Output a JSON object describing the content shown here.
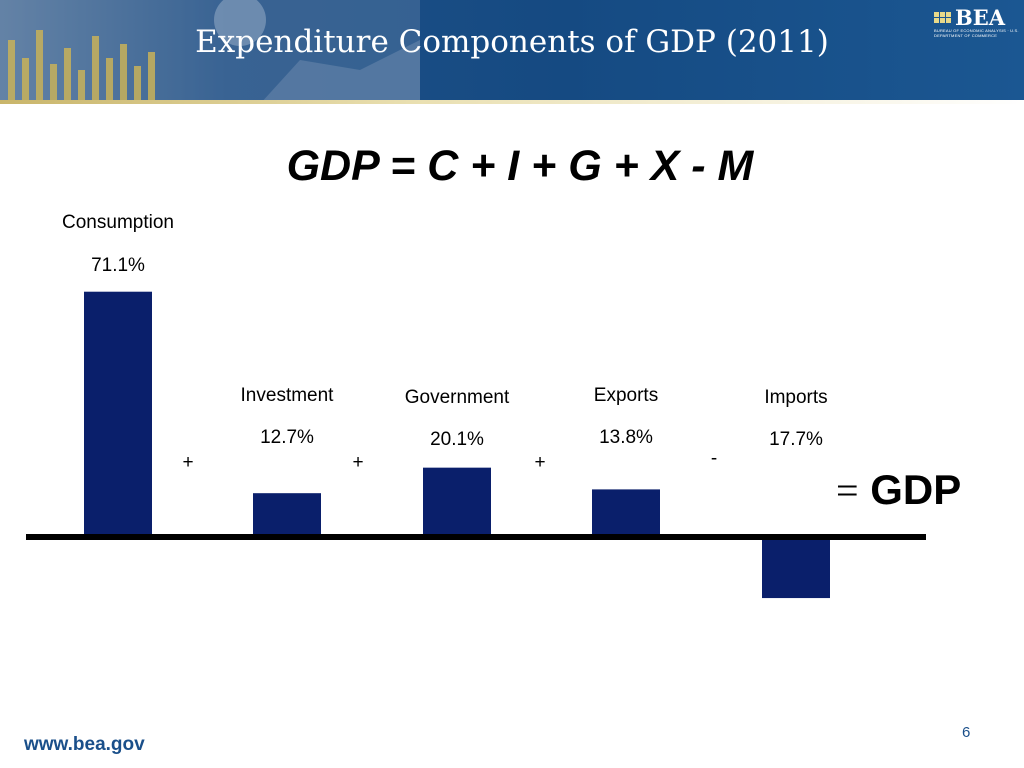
{
  "header": {
    "title": "Expenditure Components of GDP  (2011)",
    "logo_text": "BEA",
    "logo_subtext": "BUREAU OF ECONOMIC ANALYSIS · U.S. DEPARTMENT OF COMMERCE"
  },
  "equation": "GDP = C + I + G + X - M",
  "operators": [
    "+",
    "+",
    "+",
    "-"
  ],
  "result": {
    "equals": "=",
    "label": "GDP"
  },
  "footer": {
    "url": "www.bea.gov",
    "page": "6"
  },
  "colors": {
    "bar": "#0a1f6b",
    "axis": "#000000",
    "header": "#1b4f88"
  },
  "chart_data": {
    "type": "bar",
    "categories": [
      "Consumption",
      "Investment",
      "Government",
      "Exports",
      "Imports"
    ],
    "values": [
      71.1,
      12.7,
      20.1,
      13.8,
      -17.7
    ],
    "value_labels": [
      "71.1%",
      "12.7%",
      "20.1%",
      "13.8%",
      "17.7%"
    ],
    "title": "",
    "xlabel": "",
    "ylabel": "",
    "ylim": [
      -20,
      75
    ],
    "grid": false
  }
}
